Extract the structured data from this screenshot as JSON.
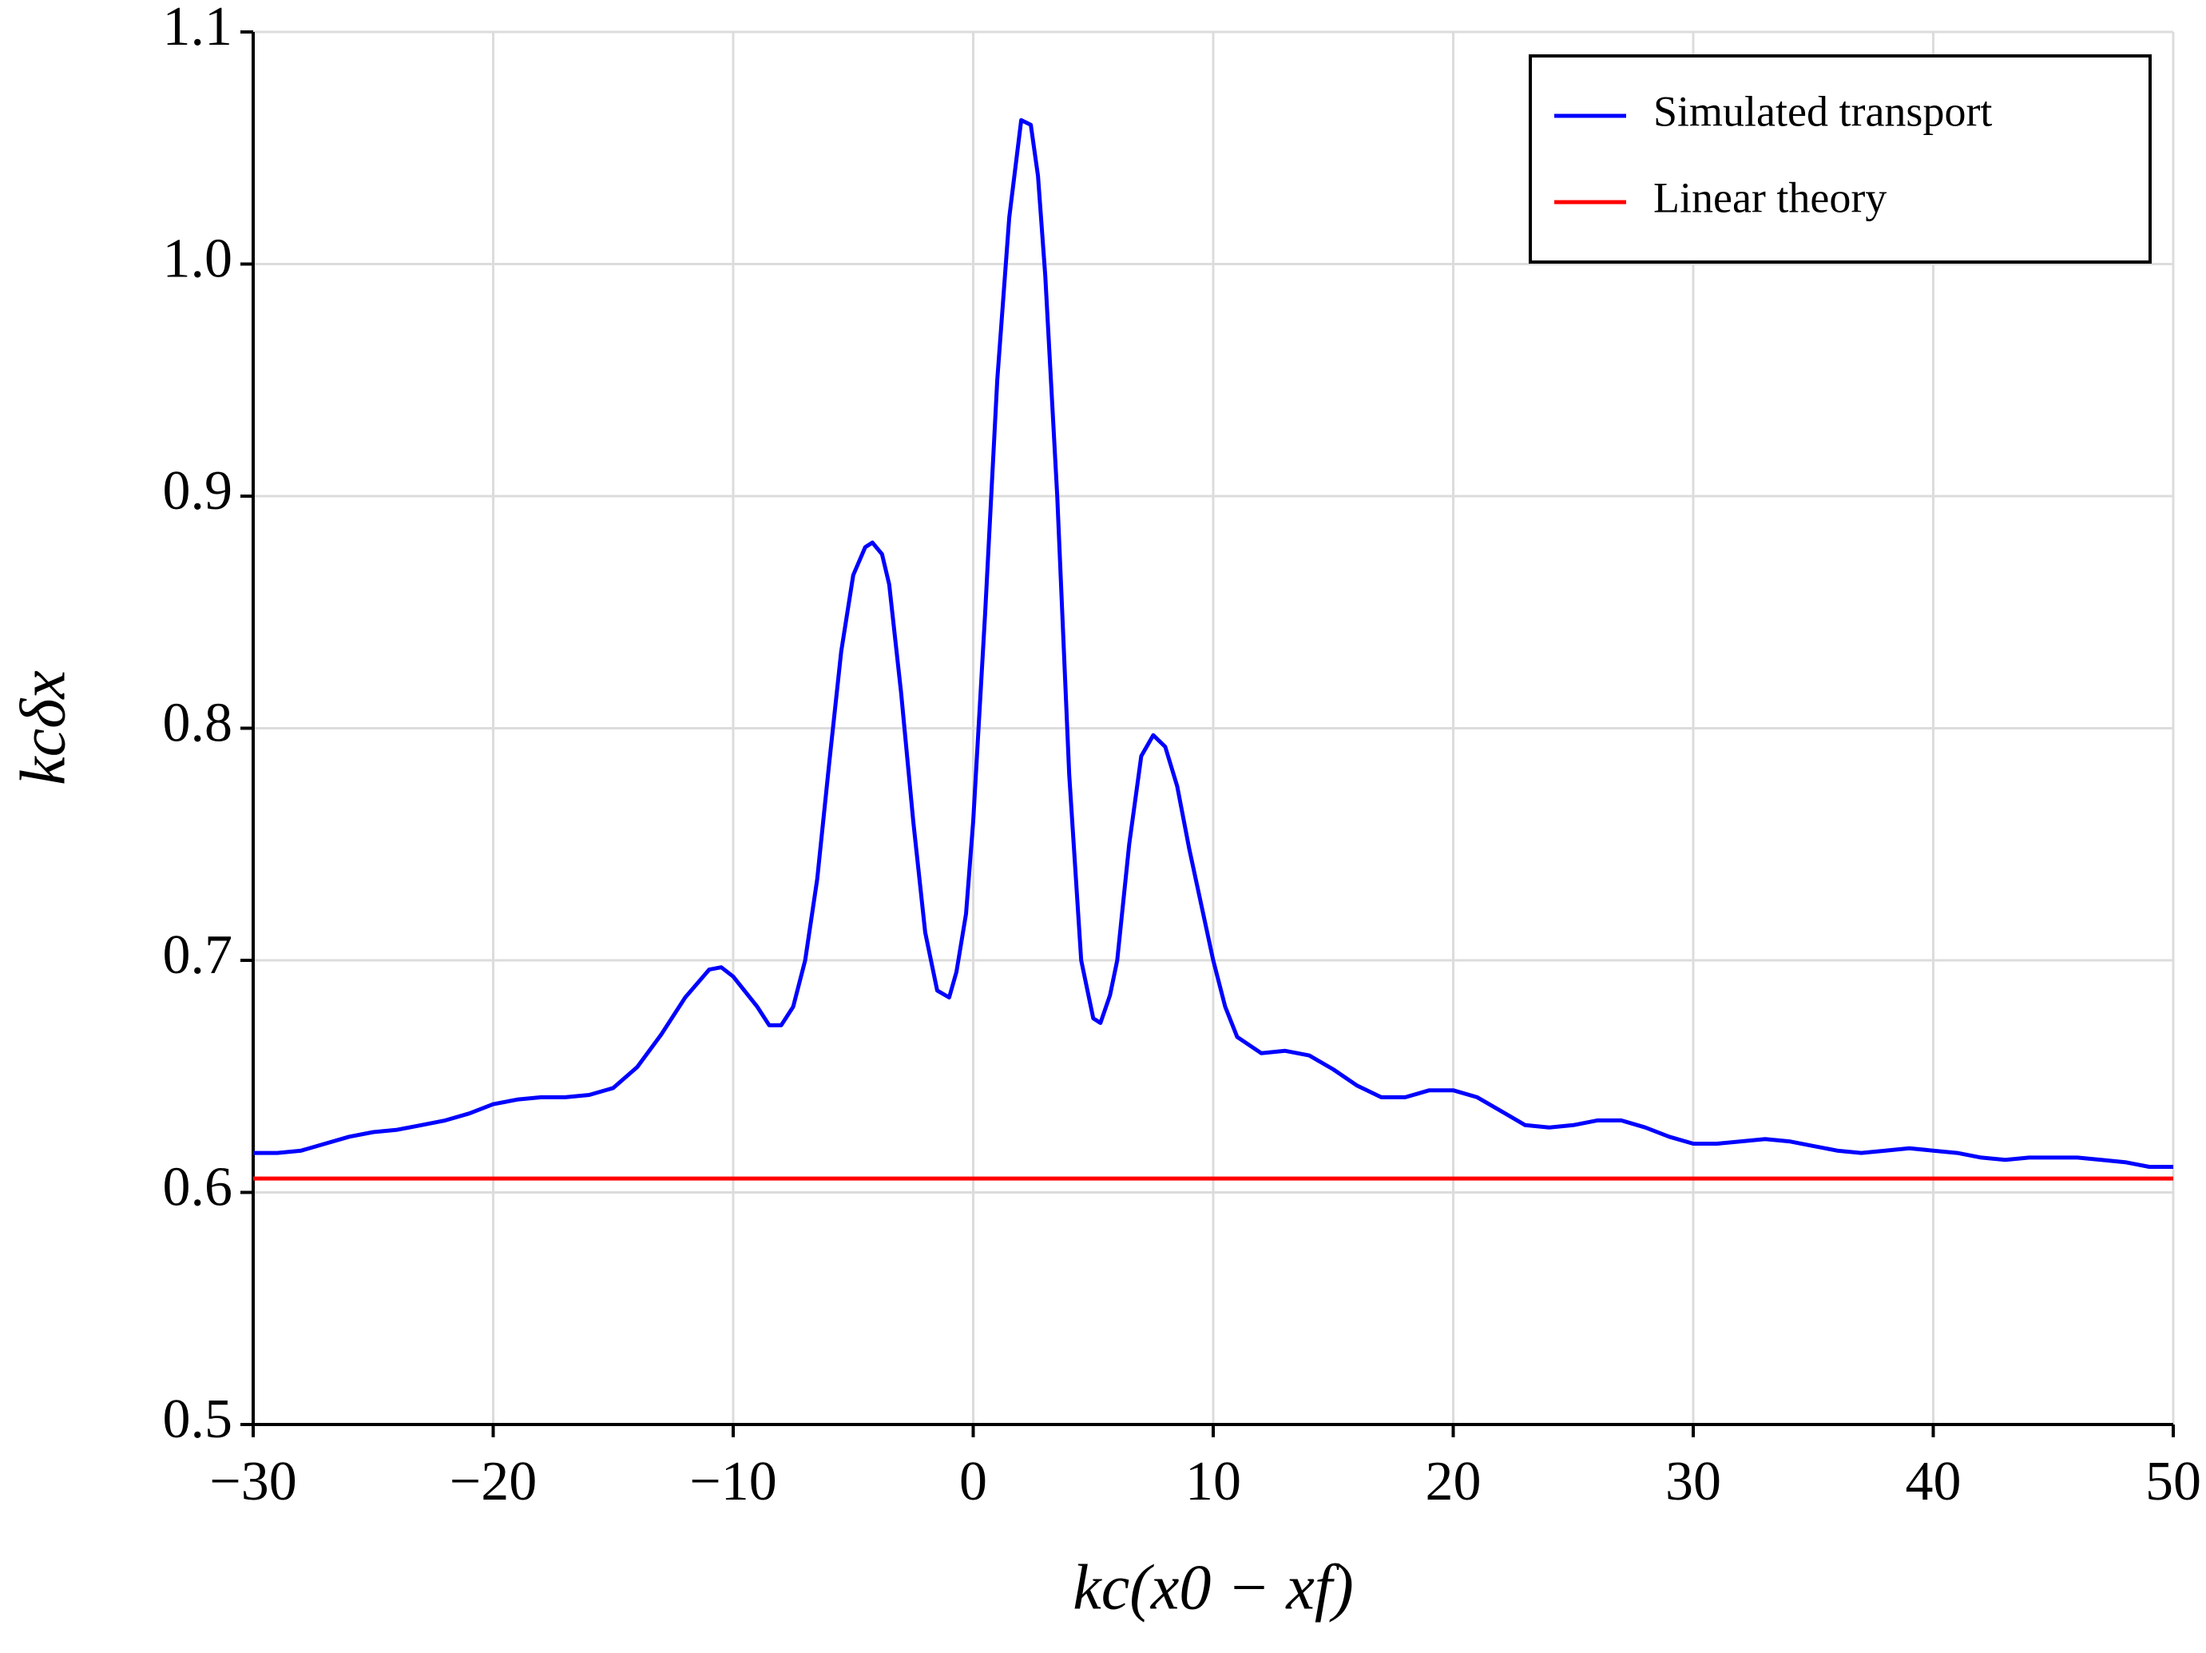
{
  "chart_data": {
    "type": "line",
    "x_label": "kc(x0 − xf)",
    "y_label": "kcδx",
    "xlim": [
      -30,
      50
    ],
    "ylim": [
      0.5,
      1.1
    ],
    "xticks": [
      {
        "value": -30,
        "label": "−30"
      },
      {
        "value": -20,
        "label": "−20"
      },
      {
        "value": -10,
        "label": "−10"
      },
      0,
      10,
      20,
      30,
      40,
      50
    ],
    "yticks": [
      0.5,
      0.6,
      0.7,
      0.8,
      0.9,
      {
        "value": 1.0,
        "label": "1.0"
      },
      1.1
    ],
    "grid": true,
    "legend": "upper right",
    "series": [
      {
        "name": "Simulated transport",
        "color": "#0000ff",
        "x": [
          -30,
          -29,
          -28,
          -27,
          -26,
          -25,
          -24,
          -23,
          -22,
          -21,
          -20,
          -19,
          -18,
          -17,
          -16,
          -15,
          -14,
          -13,
          -12,
          -11,
          -10.5,
          -10,
          -9,
          -8.5,
          -8,
          -7.5,
          -7,
          -6.5,
          -6,
          -5.5,
          -5,
          -4.5,
          -4.2,
          -3.8,
          -3.5,
          -3,
          -2.5,
          -2,
          -1.5,
          -1,
          -0.7,
          -0.3,
          0,
          0.5,
          1,
          1.5,
          2,
          2.4,
          2.7,
          3,
          3.5,
          4,
          4.5,
          5,
          5.3,
          5.7,
          6,
          6.5,
          7,
          7.5,
          8,
          8.5,
          9,
          10,
          10.5,
          11,
          12,
          13,
          14,
          15,
          16,
          17,
          18,
          19,
          20,
          21,
          22,
          23,
          24,
          25,
          26,
          27,
          28,
          29,
          30,
          31,
          32,
          33,
          34,
          35,
          36,
          37,
          38,
          39,
          40,
          41,
          42,
          43,
          44,
          45,
          46,
          47,
          48,
          49,
          50
        ],
        "values": [
          0.617,
          0.617,
          0.618,
          0.621,
          0.624,
          0.626,
          0.627,
          0.629,
          0.631,
          0.634,
          0.638,
          0.64,
          0.641,
          0.641,
          0.642,
          0.645,
          0.654,
          0.668,
          0.684,
          0.696,
          0.697,
          0.693,
          0.68,
          0.672,
          0.672,
          0.68,
          0.7,
          0.735,
          0.785,
          0.833,
          0.866,
          0.878,
          0.88,
          0.875,
          0.862,
          0.815,
          0.76,
          0.712,
          0.687,
          0.684,
          0.695,
          0.72,
          0.76,
          0.85,
          0.95,
          1.02,
          1.062,
          1.06,
          1.038,
          0.995,
          0.9,
          0.78,
          0.7,
          0.675,
          0.673,
          0.685,
          0.7,
          0.75,
          0.788,
          0.797,
          0.792,
          0.775,
          0.748,
          0.7,
          0.68,
          0.667,
          0.66,
          0.661,
          0.659,
          0.653,
          0.646,
          0.641,
          0.641,
          0.644,
          0.644,
          0.641,
          0.635,
          0.629,
          0.628,
          0.629,
          0.631,
          0.631,
          0.628,
          0.624,
          0.621,
          0.621,
          0.622,
          0.623,
          0.622,
          0.62,
          0.618,
          0.617,
          0.618,
          0.619,
          0.618,
          0.617,
          0.615,
          0.614,
          0.615,
          0.615,
          0.615,
          0.614,
          0.613,
          0.611,
          0.611
        ]
      },
      {
        "name": "Linear theory",
        "color": "#ff0000",
        "x": [
          -30,
          50
        ],
        "values": [
          0.606,
          0.606
        ]
      }
    ]
  }
}
